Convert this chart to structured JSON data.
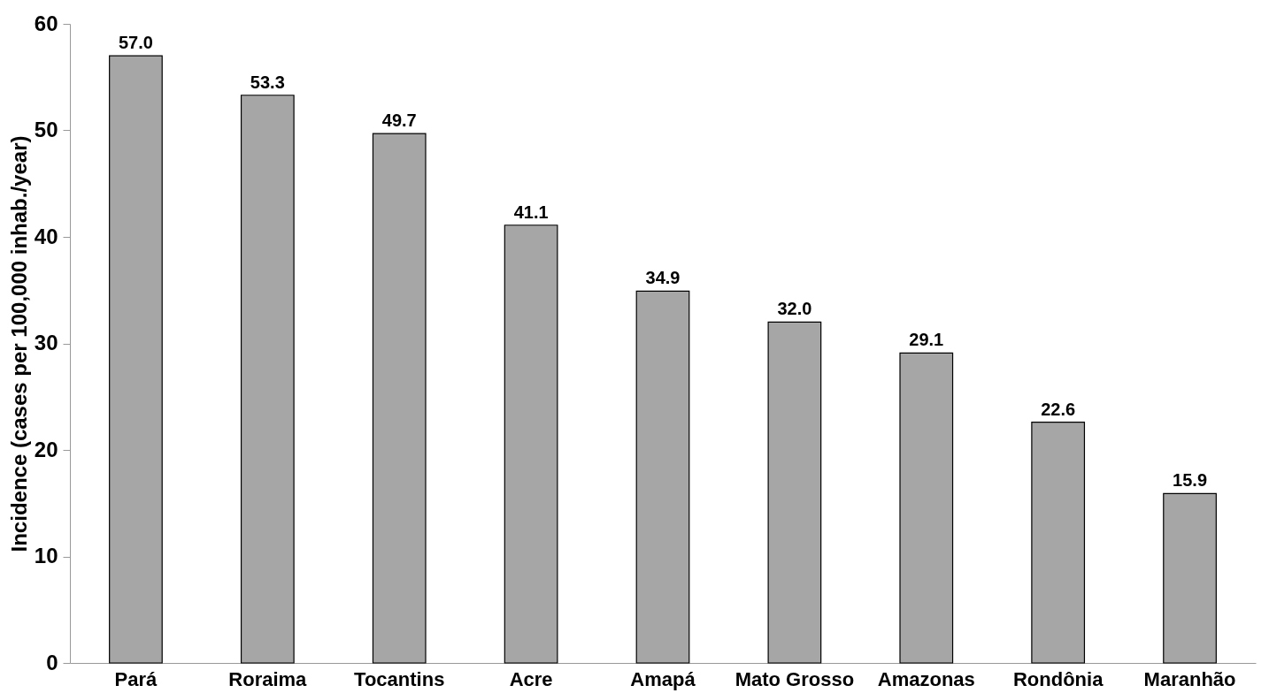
{
  "chart_data": {
    "type": "bar",
    "ylabel": "Incidence (cases per 100,000 inhab./year)",
    "categories": [
      "Pará",
      "Roraima",
      "Tocantins",
      "Acre",
      "Amapá",
      "Mato Grosso",
      "Amazonas",
      "Rondônia",
      "Maranhão"
    ],
    "values": [
      57.0,
      53.3,
      49.7,
      41.1,
      34.9,
      32.0,
      29.1,
      22.6,
      15.9
    ],
    "color": "#a6a6a6",
    "ylim": [
      0,
      60
    ],
    "yticks": [
      0,
      10,
      20,
      30,
      40,
      50,
      60
    ],
    "value_labels": [
      "57.0",
      "53.3",
      "49.7",
      "41.1",
      "34.9",
      "32.0",
      "29.1",
      "22.6",
      "15.9"
    ],
    "grid": false
  }
}
